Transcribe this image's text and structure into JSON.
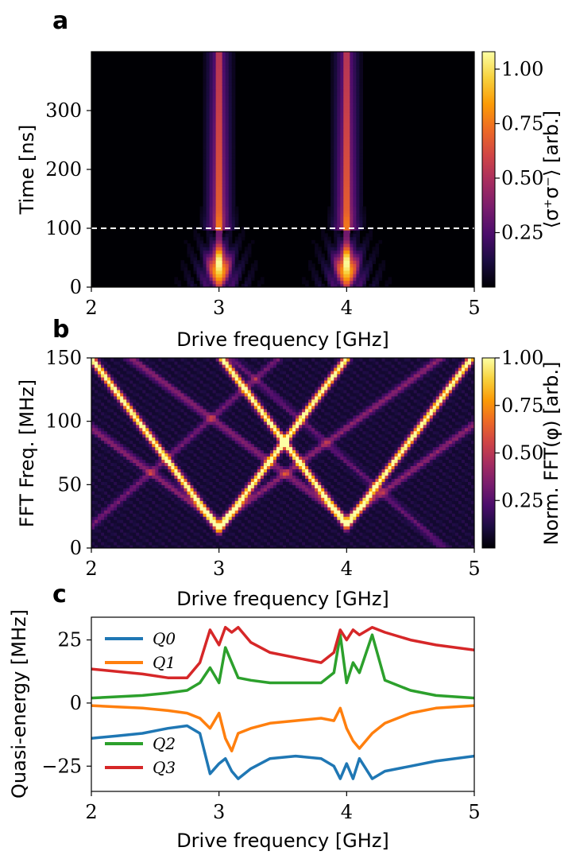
{
  "panels": {
    "a": {
      "letter": "a"
    },
    "b": {
      "letter": "b"
    },
    "c": {
      "letter": "c"
    }
  },
  "colors": {
    "inferno": [
      "#000004",
      "#1b0c41",
      "#4a0c6b",
      "#781c6d",
      "#a52c60",
      "#cf4446",
      "#ed6925",
      "#fb9b06",
      "#f7d13d",
      "#fcffa4"
    ],
    "q0": "#1f77b4",
    "q1": "#ff7f0e",
    "q2": "#2ca02c",
    "q3": "#d62728",
    "dashed_line": "#ffffff"
  },
  "chart_data": [
    {
      "id": "a",
      "type": "heatmap",
      "xlabel": "Drive frequency [GHz]",
      "ylabel": "Time [ns]",
      "xlim": [
        2,
        5
      ],
      "ylim": [
        0,
        400
      ],
      "xticks": [
        2,
        3,
        4,
        5
      ],
      "yticks": [
        0,
        100,
        200,
        300
      ],
      "resonances_ghz": [
        3,
        4
      ],
      "dashed_hline_y": 100,
      "colorbar": {
        "label": "⟨σ⁺σ⁻⟩ [arb.]",
        "range": [
          0,
          1.08
        ],
        "ticks": [
          0.25,
          0.5,
          0.75,
          1.0
        ],
        "tick_labels": [
          "0.25",
          "0.50",
          "0.75",
          "1.00"
        ]
      }
    },
    {
      "id": "b",
      "type": "heatmap",
      "xlabel": "Drive frequency [GHz]",
      "ylabel": "FFT Freq. [MHz]",
      "xlim": [
        2,
        5
      ],
      "ylim": [
        0,
        150
      ],
      "xticks": [
        2,
        3,
        4,
        5
      ],
      "yticks": [
        0,
        50,
        100,
        150
      ],
      "v_minima": [
        {
          "x": 3,
          "y": 15
        },
        {
          "x": 4,
          "y": 18
        }
      ],
      "colorbar": {
        "label": "Norm. FFT(φ) [arb.]",
        "range": [
          0,
          1.0
        ],
        "ticks": [
          0.25,
          0.5,
          0.75,
          1.0
        ],
        "tick_labels": [
          "0.25",
          "0.50",
          "0.75",
          "1.00"
        ]
      }
    },
    {
      "id": "c",
      "type": "line",
      "xlabel": "Drive frequency [GHz]",
      "ylabel": "Quasi-energy [MHz]",
      "xlim": [
        2,
        5
      ],
      "ylim": [
        -35,
        34
      ],
      "xticks": [
        2,
        3,
        4,
        5
      ],
      "yticks": [
        -25,
        0,
        25
      ],
      "ytick_labels": [
        "−25",
        "0",
        "25"
      ],
      "legend": [
        "Q0",
        "Q1",
        "Q2",
        "Q3"
      ],
      "series": [
        {
          "name": "Q0",
          "x": [
            2.0,
            2.2,
            2.4,
            2.6,
            2.75,
            2.85,
            2.93,
            3.0,
            3.05,
            3.1,
            3.15,
            3.25,
            3.4,
            3.6,
            3.8,
            3.9,
            3.95,
            4.0,
            4.05,
            4.1,
            4.2,
            4.3,
            4.5,
            4.7,
            5.0
          ],
          "y": [
            -14,
            -13,
            -12,
            -10,
            -9,
            -12,
            -28,
            -24,
            -22,
            -27,
            -30,
            -26,
            -22,
            -21,
            -22,
            -25,
            -30,
            -24,
            -30,
            -22,
            -30,
            -27,
            -25,
            -23,
            -21
          ]
        },
        {
          "name": "Q1",
          "x": [
            2.0,
            2.2,
            2.4,
            2.6,
            2.75,
            2.85,
            2.93,
            3.0,
            3.05,
            3.1,
            3.15,
            3.25,
            3.4,
            3.6,
            3.8,
            3.9,
            3.95,
            4.0,
            4.05,
            4.1,
            4.2,
            4.3,
            4.5,
            4.7,
            5.0
          ],
          "y": [
            -1,
            -1.5,
            -2,
            -3,
            -4,
            -6,
            -10,
            -4,
            -14,
            -19,
            -12,
            -10,
            -8,
            -7,
            -6,
            -7,
            -2,
            -10,
            -15,
            -18,
            -12,
            -8,
            -4,
            -2,
            -1
          ]
        },
        {
          "name": "Q2",
          "x": [
            2.0,
            2.2,
            2.4,
            2.6,
            2.75,
            2.85,
            2.93,
            3.0,
            3.05,
            3.1,
            3.15,
            3.25,
            3.4,
            3.6,
            3.8,
            3.9,
            3.95,
            4.0,
            4.05,
            4.1,
            4.2,
            4.3,
            4.5,
            4.7,
            5.0
          ],
          "y": [
            2,
            2.5,
            3,
            4,
            5,
            8,
            14,
            8,
            22,
            16,
            10,
            9,
            8,
            8,
            8,
            12,
            27,
            8,
            16,
            12,
            27,
            9,
            5,
            3,
            2
          ]
        },
        {
          "name": "Q3",
          "x": [
            2.0,
            2.2,
            2.4,
            2.6,
            2.75,
            2.85,
            2.93,
            3.0,
            3.05,
            3.1,
            3.15,
            3.25,
            3.4,
            3.6,
            3.8,
            3.9,
            3.95,
            4.0,
            4.05,
            4.1,
            4.2,
            4.3,
            4.5,
            4.7,
            5.0
          ],
          "y": [
            13.5,
            12.5,
            11.5,
            10,
            10,
            16,
            29,
            23,
            30,
            28,
            30,
            24,
            20,
            18,
            16,
            20,
            29,
            25,
            29,
            27,
            30,
            28,
            25,
            23,
            21
          ]
        }
      ]
    }
  ]
}
